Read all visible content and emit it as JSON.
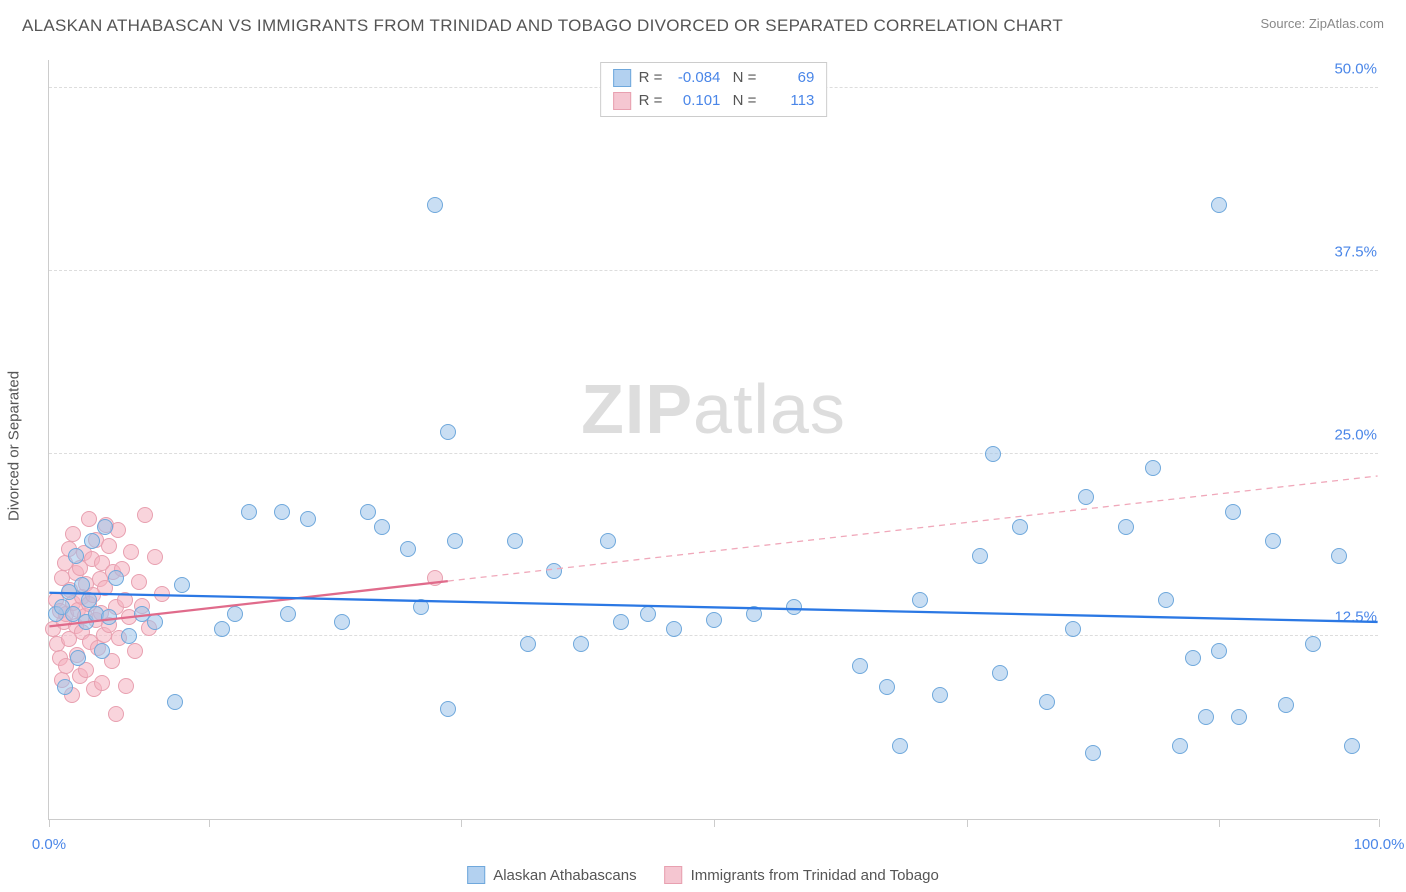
{
  "title": "ALASKAN ATHABASCAN VS IMMIGRANTS FROM TRINIDAD AND TOBAGO DIVORCED OR SEPARATED CORRELATION CHART",
  "source_prefix": "Source: ",
  "source_name": "ZipAtlas.com",
  "y_axis_label": "Divorced or Separated",
  "watermark_a": "ZIP",
  "watermark_b": "atlas",
  "chart": {
    "type": "scatter",
    "xlim": [
      0,
      100
    ],
    "ylim": [
      0,
      52
    ],
    "x_ticks": [
      0,
      12,
      31,
      50,
      69,
      88,
      100
    ],
    "x_tick_labels": {
      "0": "0.0%",
      "100": "100.0%"
    },
    "y_gridlines": [
      12.5,
      25.0,
      37.5,
      50.0
    ],
    "y_tick_labels": [
      "12.5%",
      "25.0%",
      "37.5%",
      "50.0%"
    ],
    "plot_bg": "#ffffff",
    "grid_color": "#dddddd",
    "axis_color": "#cccccc",
    "point_radius": 8,
    "series": [
      {
        "name": "Alaskan Athabascans",
        "fill": "rgba(157,195,234,0.55)",
        "stroke": "#6fa8dc",
        "swatch_fill": "#b3d1f0",
        "swatch_stroke": "#6fa8dc",
        "R": "-0.084",
        "N": "69",
        "trend": {
          "x1": 0,
          "y1": 15.5,
          "x2": 100,
          "y2": 13.5,
          "color": "#2b78e4",
          "width": 2.3,
          "dash": ""
        },
        "points": [
          [
            0.5,
            14
          ],
          [
            1,
            14.5
          ],
          [
            1.2,
            9
          ],
          [
            1.5,
            15.5
          ],
          [
            1.8,
            14
          ],
          [
            2,
            18
          ],
          [
            2.2,
            11
          ],
          [
            2.5,
            16
          ],
          [
            2.8,
            13.5
          ],
          [
            3,
            15
          ],
          [
            3.2,
            19
          ],
          [
            3.5,
            14
          ],
          [
            4,
            11.5
          ],
          [
            4.2,
            20
          ],
          [
            4.5,
            13.8
          ],
          [
            5,
            16.5
          ],
          [
            6,
            12.5
          ],
          [
            7,
            14
          ],
          [
            8,
            13.5
          ],
          [
            9.5,
            8
          ],
          [
            10,
            16
          ],
          [
            13,
            13
          ],
          [
            14,
            14
          ],
          [
            15,
            21
          ],
          [
            17.5,
            21
          ],
          [
            18,
            14
          ],
          [
            19.5,
            20.5
          ],
          [
            22,
            13.5
          ],
          [
            24,
            21
          ],
          [
            25,
            20
          ],
          [
            27,
            18.5
          ],
          [
            28,
            14.5
          ],
          [
            29,
            42
          ],
          [
            30,
            26.5
          ],
          [
            30,
            7.5
          ],
          [
            30.5,
            19
          ],
          [
            35,
            19
          ],
          [
            36,
            12
          ],
          [
            38,
            17
          ],
          [
            40,
            12
          ],
          [
            42,
            19
          ],
          [
            43,
            13.5
          ],
          [
            45,
            14
          ],
          [
            47,
            13
          ],
          [
            50,
            13.6
          ],
          [
            53,
            14
          ],
          [
            56,
            14.5
          ],
          [
            61,
            10.5
          ],
          [
            63,
            9
          ],
          [
            64,
            5
          ],
          [
            65.5,
            15
          ],
          [
            67,
            8.5
          ],
          [
            70,
            18
          ],
          [
            71,
            25
          ],
          [
            71.5,
            10
          ],
          [
            73,
            20
          ],
          [
            75,
            8
          ],
          [
            77,
            13
          ],
          [
            78,
            22
          ],
          [
            78.5,
            4.5
          ],
          [
            81,
            20
          ],
          [
            83,
            24
          ],
          [
            84,
            15
          ],
          [
            85,
            5
          ],
          [
            86,
            11
          ],
          [
            87,
            7
          ],
          [
            88,
            11.5
          ],
          [
            88,
            42
          ],
          [
            89,
            21
          ],
          [
            89.5,
            7
          ],
          [
            92,
            19
          ],
          [
            93,
            7.8
          ],
          [
            95,
            12
          ],
          [
            97,
            18
          ],
          [
            98,
            5
          ]
        ]
      },
      {
        "name": "Immigrants from Trinidad and Tobago",
        "fill": "rgba(244,177,191,0.55)",
        "stroke": "#e8a0b0",
        "swatch_fill": "#f5c6d1",
        "swatch_stroke": "#e8a0b0",
        "R": "0.101",
        "N": "113",
        "trend_solid": {
          "x1": 0,
          "y1": 13.2,
          "x2": 30,
          "y2": 16.3,
          "color": "#e06b8b",
          "width": 2.3
        },
        "trend_dash": {
          "x1": 30,
          "y1": 16.3,
          "x2": 100,
          "y2": 23.5,
          "color": "#f0a8ba",
          "width": 1.3,
          "dash": "6,5"
        },
        "points": [
          [
            0.3,
            13
          ],
          [
            0.5,
            15
          ],
          [
            0.6,
            12
          ],
          [
            0.8,
            14.2
          ],
          [
            0.8,
            11
          ],
          [
            1,
            16.5
          ],
          [
            1,
            9.5
          ],
          [
            1.1,
            13.5
          ],
          [
            1.2,
            17.5
          ],
          [
            1.3,
            14
          ],
          [
            1.3,
            10.5
          ],
          [
            1.5,
            18.5
          ],
          [
            1.5,
            12.3
          ],
          [
            1.6,
            15.7
          ],
          [
            1.7,
            8.5
          ],
          [
            1.8,
            14.8
          ],
          [
            1.8,
            19.5
          ],
          [
            2,
            13.2
          ],
          [
            2,
            16.8
          ],
          [
            2.1,
            11.2
          ],
          [
            2.2,
            14.3
          ],
          [
            2.3,
            17.2
          ],
          [
            2.3,
            9.8
          ],
          [
            2.5,
            15.2
          ],
          [
            2.5,
            12.8
          ],
          [
            2.6,
            18.2
          ],
          [
            2.7,
            13.9
          ],
          [
            2.8,
            10.2
          ],
          [
            2.8,
            16.1
          ],
          [
            3,
            14.7
          ],
          [
            3,
            20.5
          ],
          [
            3.1,
            12.1
          ],
          [
            3.2,
            17.8
          ],
          [
            3.3,
            15.3
          ],
          [
            3.4,
            8.9
          ],
          [
            3.5,
            13.6
          ],
          [
            3.5,
            19.1
          ],
          [
            3.7,
            11.7
          ],
          [
            3.8,
            16.4
          ],
          [
            3.9,
            14.1
          ],
          [
            4,
            9.3
          ],
          [
            4,
            17.5
          ],
          [
            4.1,
            12.6
          ],
          [
            4.2,
            15.8
          ],
          [
            4.3,
            20.1
          ],
          [
            4.5,
            13.3
          ],
          [
            4.5,
            18.7
          ],
          [
            4.7,
            10.8
          ],
          [
            4.8,
            16.9
          ],
          [
            5,
            14.5
          ],
          [
            5,
            7.2
          ],
          [
            5.2,
            19.8
          ],
          [
            5.3,
            12.4
          ],
          [
            5.5,
            17.1
          ],
          [
            5.7,
            15
          ],
          [
            5.8,
            9.1
          ],
          [
            6,
            13.8
          ],
          [
            6.2,
            18.3
          ],
          [
            6.5,
            11.5
          ],
          [
            6.8,
            16.2
          ],
          [
            7,
            14.6
          ],
          [
            7.2,
            20.8
          ],
          [
            7.5,
            13.1
          ],
          [
            8,
            17.9
          ],
          [
            8.5,
            15.4
          ],
          [
            29,
            16.5
          ]
        ]
      }
    ]
  },
  "legend_series1": "Alaskan Athabascans",
  "legend_series2": "Immigrants from Trinidad and Tobago"
}
